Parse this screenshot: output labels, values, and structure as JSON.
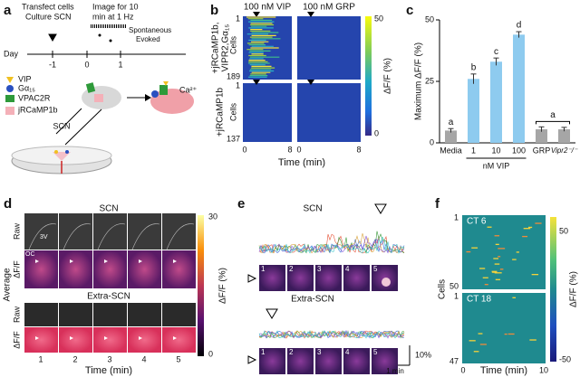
{
  "panel_labels": [
    "a",
    "b",
    "c",
    "d",
    "e",
    "f"
  ],
  "panels": {
    "a": {
      "steps": [
        "Transfect cells",
        "Culture SCN"
      ],
      "imaging": [
        "Image for 10",
        "min at 1 Hz"
      ],
      "conditions": [
        "Spontaneous",
        "Evoked"
      ],
      "day_label": "Day",
      "days": [
        -1,
        0,
        1
      ],
      "legend": [
        "VIP",
        "Gα₁₅",
        "VPAC2R",
        "jRCaMP1b"
      ],
      "ion": "Ca²⁺",
      "tissue": "SCN"
    },
    "b": {
      "conditions": [
        "100 nM VIP",
        "100 nM GRP"
      ],
      "rows": [
        {
          "label": [
            "+jRCaMP1b,",
            "VIPR2,Gα₁₅"
          ],
          "ticks": [
            1,
            189
          ]
        },
        {
          "label": [
            "+jRCaMP1b"
          ],
          "ticks": [
            1,
            137
          ]
        }
      ],
      "y_label": "Cells",
      "x_ticks": [
        0,
        8
      ],
      "x_label": "Time (min)",
      "colorbar": {
        "ticks": [
          0,
          50
        ],
        "label": "ΔF/F (%)"
      }
    },
    "d": {
      "titles": [
        "SCN",
        "Extra-SCN"
      ],
      "row_labels": [
        "Raw",
        "ΔF/F"
      ],
      "group_label": "Average",
      "regions": [
        "3V",
        "OC"
      ],
      "frames": [
        1,
        2,
        3,
        4,
        5
      ],
      "x_label": "Time (min)",
      "colorbar": {
        "ticks": [
          0,
          30
        ],
        "label": "ΔF/F (%)"
      }
    },
    "e": {
      "titles": [
        "SCN",
        "Extra-SCN"
      ],
      "frames": [
        1,
        2,
        3,
        4,
        5
      ],
      "scale": [
        "10%",
        "1 min"
      ]
    },
    "f": {
      "rows": [
        {
          "label": "CT 6",
          "ticks": [
            1,
            50
          ]
        },
        {
          "label": "CT 18",
          "ticks": [
            1,
            47
          ]
        }
      ],
      "y_label": "Cells",
      "x_ticks": [
        0,
        10
      ],
      "x_label": "Time (min)",
      "colorbar": {
        "ticks": [
          -50,
          50
        ],
        "label": "ΔF/F (%)"
      }
    }
  },
  "chart_data": {
    "type": "bar",
    "ylabel": "Maximum ΔF/F (%)",
    "categories": [
      "Media",
      "1",
      "10",
      "100",
      "GRP",
      "Vipr2⁻/⁻"
    ],
    "group_label": "nM VIP",
    "values": [
      5,
      26,
      33,
      44,
      5.5,
      5.5
    ],
    "errors": [
      0.8,
      2,
      1.5,
      1.2,
      1,
      0.8
    ],
    "colors": [
      "#a6a6a6",
      "#8ecbef",
      "#8ecbef",
      "#8ecbef",
      "#a6a6a6",
      "#a6a6a6"
    ],
    "significance_labels": [
      "a",
      "b",
      "c",
      "d",
      null,
      null
    ],
    "bracket_label": "a",
    "ylim": [
      0,
      50
    ],
    "yticks": [
      0,
      25,
      50
    ]
  }
}
